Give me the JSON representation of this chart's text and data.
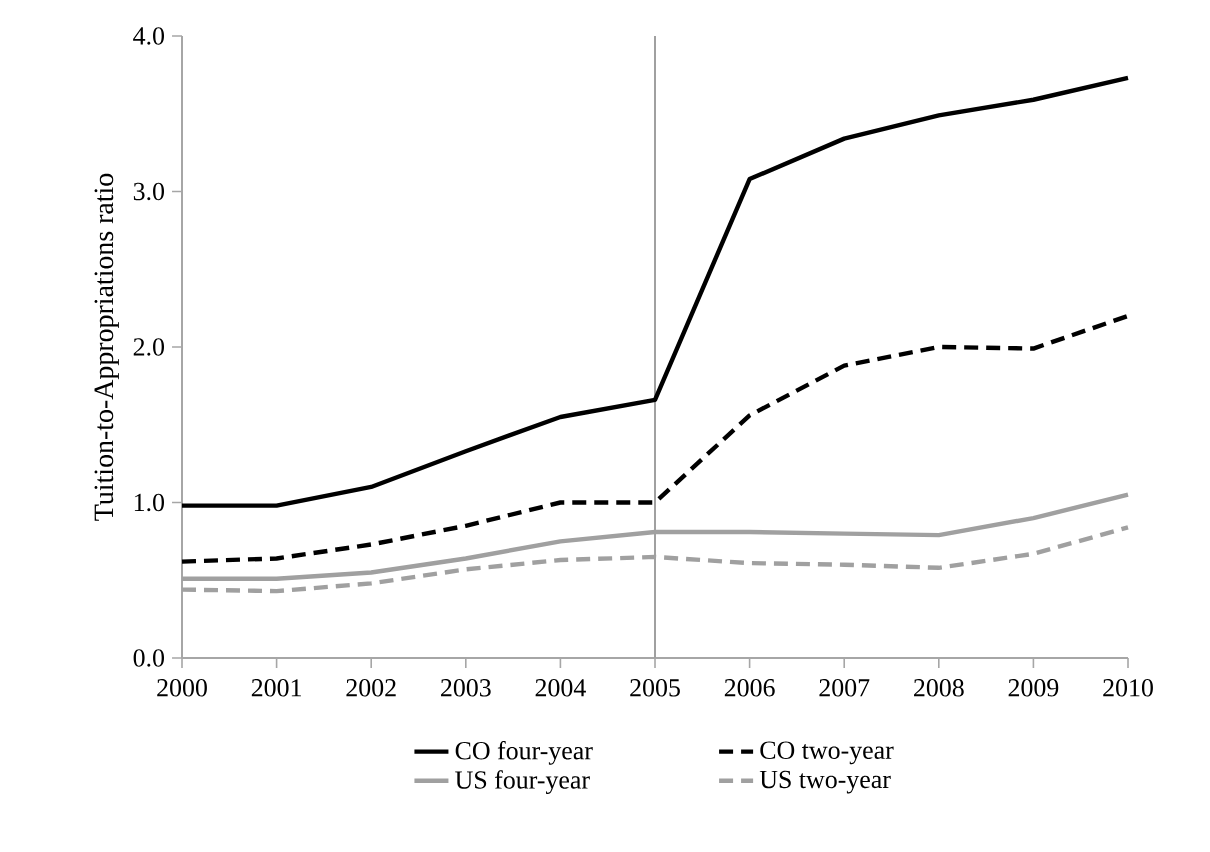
{
  "chart_data": {
    "type": "line",
    "ylabel": "Tuition-to-Appropriations ratio",
    "x": [
      2000,
      2001,
      2002,
      2003,
      2004,
      2005,
      2006,
      2007,
      2008,
      2009,
      2010
    ],
    "xlim": [
      2000,
      2010
    ],
    "xticks": [
      2000,
      2001,
      2002,
      2003,
      2004,
      2005,
      2006,
      2007,
      2008,
      2009,
      2010
    ],
    "ylim": [
      0,
      4
    ],
    "yticks": [
      {
        "value": 0,
        "label": "0.0"
      },
      {
        "value": 1,
        "label": "1.0"
      },
      {
        "value": 2,
        "label": "2.0"
      },
      {
        "value": 3,
        "label": "3.0"
      },
      {
        "value": 4,
        "label": "4.0"
      }
    ],
    "grid": false,
    "legend": "bottom",
    "marker": "none",
    "ref_lines": [
      {
        "axis": "x",
        "value": 2005,
        "color": "#a0a0a0"
      }
    ],
    "series": [
      {
        "name": "CO four-year",
        "color": "#000000",
        "line_style": "solid",
        "values": [
          0.98,
          0.98,
          1.1,
          1.33,
          1.55,
          1.66,
          3.08,
          3.34,
          3.49,
          3.59,
          3.73
        ]
      },
      {
        "name": "CO two-year",
        "color": "#000000",
        "line_style": "dashed",
        "values": [
          0.62,
          0.64,
          0.73,
          0.85,
          1.0,
          1.0,
          1.56,
          1.88,
          2.0,
          1.99,
          2.2
        ]
      },
      {
        "name": "US four-year",
        "color": "#a0a0a0",
        "line_style": "solid",
        "values": [
          0.51,
          0.51,
          0.55,
          0.64,
          0.75,
          0.81,
          0.81,
          0.8,
          0.79,
          0.9,
          1.05
        ]
      },
      {
        "name": "US two-year",
        "color": "#a0a0a0",
        "line_style": "dashed",
        "values": [
          0.44,
          0.43,
          0.48,
          0.57,
          0.63,
          0.65,
          0.61,
          0.6,
          0.58,
          0.67,
          0.84
        ]
      }
    ]
  }
}
